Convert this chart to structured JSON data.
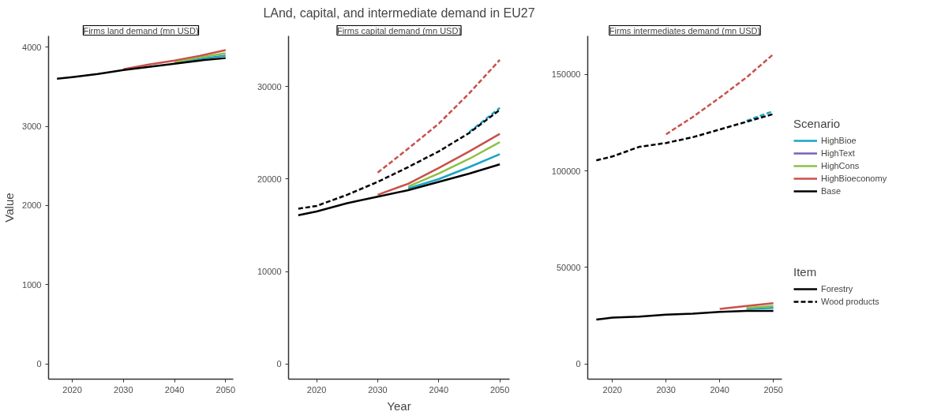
{
  "chart_data": [
    {
      "type": "line",
      "subtitle": "Firms land demand (mn USD)",
      "ylabel": "Value",
      "x": [
        2017,
        2020,
        2025,
        2030,
        2035,
        2040,
        2045,
        2050
      ],
      "xlim": [
        2015.35,
        2051.5
      ],
      "xticks": [
        2020,
        2030,
        2040,
        2050
      ],
      "ylim": [
        -190,
        4140
      ],
      "yticks": [
        0,
        1000,
        2000,
        3000,
        4000
      ],
      "grid": false,
      "legend": false,
      "marker": "none",
      "series": [
        {
          "color": "#1ba3c6",
          "line_style": "solid",
          "values": [
            null,
            null,
            null,
            null,
            null,
            3800,
            3850,
            3890
          ]
        },
        {
          "color": "#7b5fb5",
          "line_style": "solid",
          "values": [
            null,
            null,
            null,
            null,
            null,
            null,
            null,
            null
          ]
        },
        {
          "color": "#8cc044",
          "line_style": "solid",
          "values": [
            null,
            null,
            null,
            null,
            null,
            3810,
            3870,
            3920
          ]
        },
        {
          "color": "#c9504a",
          "line_style": "solid",
          "values": [
            null,
            null,
            null,
            3720,
            3780,
            3830,
            3890,
            3960
          ]
        },
        {
          "color": "#000000",
          "line_style": "solid",
          "values": [
            3600,
            3620,
            3660,
            3710,
            3750,
            3790,
            3830,
            3860
          ]
        }
      ]
    },
    {
      "type": "line",
      "title": "LAnd, capital, and intermediate demand in EU27",
      "subtitle": "Firms capital demand (mn USD)",
      "xlabel": "Year",
      "x": [
        2017,
        2020,
        2025,
        2030,
        2035,
        2040,
        2045,
        2050
      ],
      "xlim": [
        2015.4,
        2051.6
      ],
      "xticks": [
        2020,
        2030,
        2040,
        2050
      ],
      "ylim": [
        -1650,
        35500
      ],
      "yticks": [
        0,
        10000,
        20000,
        30000
      ],
      "grid": false,
      "legend": false,
      "marker": "none",
      "series": [
        {
          "color": "#1ba3c6",
          "line_style": "solid",
          "values": [
            null,
            null,
            null,
            null,
            19000,
            20000,
            21300,
            22700
          ]
        },
        {
          "color": "#7b5fb5",
          "line_style": "solid",
          "values": [
            null,
            null,
            null,
            null,
            null,
            null,
            null,
            null
          ]
        },
        {
          "color": "#8cc044",
          "line_style": "solid",
          "values": [
            null,
            null,
            null,
            null,
            19200,
            20600,
            22200,
            24000
          ]
        },
        {
          "color": "#c9504a",
          "line_style": "solid",
          "values": [
            null,
            null,
            null,
            18300,
            19500,
            21200,
            23000,
            24900
          ]
        },
        {
          "color": "#000000",
          "line_style": "solid",
          "values": [
            16100,
            16500,
            17400,
            18100,
            18800,
            19700,
            20600,
            21600
          ]
        },
        {
          "color": "#1ba3c6",
          "line_style": "dashed",
          "values": [
            null,
            null,
            null,
            null,
            null,
            null,
            25100,
            27700
          ]
        },
        {
          "color": "#7b5fb5",
          "line_style": "dashed",
          "values": [
            null,
            null,
            null,
            null,
            null,
            null,
            null,
            null
          ]
        },
        {
          "color": "#8cc044",
          "line_style": "dashed",
          "values": [
            null,
            null,
            null,
            null,
            null,
            null,
            null,
            null
          ]
        },
        {
          "color": "#c9504a",
          "line_style": "dashed",
          "values": [
            null,
            null,
            null,
            20700,
            23300,
            26000,
            29300,
            32900
          ]
        },
        {
          "color": "#000000",
          "line_style": "dashed",
          "values": [
            16800,
            17100,
            18300,
            19700,
            21300,
            23000,
            25000,
            27500
          ]
        }
      ]
    },
    {
      "type": "line",
      "subtitle": "Firms intermediates demand (mn USD)",
      "x": [
        2017,
        2020,
        2025,
        2030,
        2035,
        2040,
        2045,
        2050
      ],
      "xlim": [
        2015.4,
        2051.6
      ],
      "xticks": [
        2020,
        2030,
        2040,
        2050
      ],
      "ylim": [
        -7900,
        170000
      ],
      "yticks": [
        0,
        50000,
        100000,
        150000
      ],
      "grid": false,
      "legend": "right",
      "legend_title": "Scenario",
      "marker": "none",
      "annotations": [
        "Item",
        "Forestry",
        "Wood products"
      ],
      "series": [
        {
          "name": "HighBioe",
          "color": "#1ba3c6",
          "line_style": "solid",
          "values": [
            null,
            null,
            null,
            null,
            null,
            null,
            28500,
            29000
          ]
        },
        {
          "name": "HighText",
          "color": "#7b5fb5",
          "line_style": "solid",
          "values": [
            null,
            null,
            null,
            null,
            null,
            null,
            null,
            null
          ]
        },
        {
          "name": "HighCons",
          "color": "#8cc044",
          "line_style": "solid",
          "values": [
            null,
            null,
            null,
            null,
            null,
            null,
            29000,
            30000
          ]
        },
        {
          "name": "HighBioeconomy",
          "color": "#c9504a",
          "line_style": "solid",
          "values": [
            null,
            null,
            null,
            null,
            null,
            28500,
            30000,
            31500
          ]
        },
        {
          "name": "Base",
          "color": "#000000",
          "line_style": "solid",
          "values": [
            23000,
            24000,
            24500,
            25500,
            26000,
            27000,
            27500,
            27500
          ]
        },
        {
          "color": "#1ba3c6",
          "line_style": "dashed",
          "values": [
            null,
            null,
            null,
            null,
            null,
            null,
            126000,
            131000
          ]
        },
        {
          "color": "#7b5fb5",
          "line_style": "dashed",
          "values": [
            null,
            null,
            null,
            null,
            null,
            null,
            null,
            null
          ]
        },
        {
          "color": "#8cc044",
          "line_style": "dashed",
          "values": [
            null,
            null,
            null,
            null,
            null,
            null,
            null,
            null
          ]
        },
        {
          "color": "#c9504a",
          "line_style": "dashed",
          "values": [
            null,
            null,
            null,
            119000,
            128000,
            138000,
            148500,
            160500
          ]
        },
        {
          "color": "#000000",
          "line_style": "dashed",
          "values": [
            105500,
            107500,
            112500,
            114500,
            117500,
            121500,
            125500,
            129500
          ]
        }
      ]
    }
  ]
}
